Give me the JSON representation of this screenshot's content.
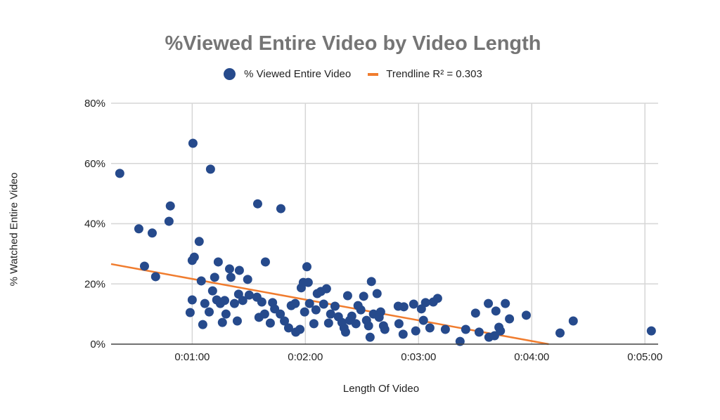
{
  "chart_data": {
    "type": "scatter",
    "title": "%Viewed Entire Video by Video Length",
    "xlabel": "Length Of Video",
    "ylabel": "% Watched Entire Video",
    "legend": [
      {
        "label": "% Viewed Entire Video",
        "type": "marker",
        "color": "#264a8c"
      },
      {
        "label": "Trendline R² = 0.303",
        "type": "line",
        "color": "#f07c2e"
      }
    ],
    "legend_position": "top",
    "grid": true,
    "x_unit": "seconds",
    "xlim": [
      17,
      307
    ],
    "ylim": [
      0,
      80
    ],
    "x_ticks": [
      {
        "value": 60,
        "label": "0:01:00"
      },
      {
        "value": 120,
        "label": "0:02:00"
      },
      {
        "value": 180,
        "label": "0:03:00"
      },
      {
        "value": 240,
        "label": "0:04:00"
      },
      {
        "value": 300,
        "label": "0:05:00"
      }
    ],
    "y_ticks": [
      {
        "value": 0,
        "label": "0%"
      },
      {
        "value": 20,
        "label": "20%"
      },
      {
        "value": 40,
        "label": "40%"
      },
      {
        "value": 60,
        "label": "60%"
      },
      {
        "value": 80,
        "label": "80%"
      }
    ],
    "trendline": {
      "r_squared": 0.303,
      "start": [
        17,
        26.6
      ],
      "end": [
        249,
        0
      ]
    },
    "series": [
      {
        "name": "% Viewed Entire Video",
        "color": "#264a8c",
        "points": [
          [
            21.6,
            56.7
          ],
          [
            31.7,
            38.3
          ],
          [
            34.7,
            25.9
          ],
          [
            38.8,
            36.9
          ],
          [
            40.6,
            22.4
          ],
          [
            47.7,
            40.8
          ],
          [
            48.4,
            45.9
          ],
          [
            58.9,
            10.5
          ],
          [
            60,
            14.7
          ],
          [
            60.4,
            66.7
          ],
          [
            60,
            27.8
          ],
          [
            61.1,
            28.9
          ],
          [
            63.7,
            34.1
          ],
          [
            64.8,
            21
          ],
          [
            65.6,
            6.5
          ],
          [
            66.7,
            13.5
          ],
          [
            69,
            10.7
          ],
          [
            69.7,
            58.1
          ],
          [
            70.8,
            17.7
          ],
          [
            71.9,
            22.2
          ],
          [
            73.8,
            27.3
          ],
          [
            73,
            14.7
          ],
          [
            74.9,
            13.5
          ],
          [
            76,
            7.2
          ],
          [
            77.2,
            14.5
          ],
          [
            77.9,
            10
          ],
          [
            79.8,
            25
          ],
          [
            80.5,
            22.2
          ],
          [
            82.4,
            13.5
          ],
          [
            83.9,
            7.7
          ],
          [
            85,
            24.5
          ],
          [
            84.6,
            16.6
          ],
          [
            86.8,
            14.5
          ],
          [
            89.4,
            21.5
          ],
          [
            90.2,
            16.3
          ],
          [
            94.7,
            46.6
          ],
          [
            94.3,
            15.6
          ],
          [
            95.4,
            8.9
          ],
          [
            96.9,
            14
          ],
          [
            98.8,
            27.3
          ],
          [
            98.4,
            10
          ],
          [
            101.4,
            7
          ],
          [
            102.6,
            13.8
          ],
          [
            103.7,
            11.7
          ],
          [
            107,
            45
          ],
          [
            106.7,
            10
          ],
          [
            108.9,
            7.7
          ],
          [
            111.1,
            5.4
          ],
          [
            112.5,
            12.8
          ],
          [
            114.6,
            13.5
          ],
          [
            114.9,
            4
          ],
          [
            117.1,
            4.9
          ],
          [
            117.8,
            18.7
          ],
          [
            118.9,
            20.5
          ],
          [
            120.8,
            25.7
          ],
          [
            119.6,
            10.7
          ],
          [
            121.5,
            20.5
          ],
          [
            122.2,
            13.5
          ],
          [
            124.5,
            6.8
          ],
          [
            125.6,
            11.4
          ],
          [
            126.3,
            16.8
          ],
          [
            128.2,
            17.5
          ],
          [
            129.7,
            13.3
          ],
          [
            131.2,
            18.4
          ],
          [
            132.3,
            7
          ],
          [
            133.4,
            10
          ],
          [
            135.7,
            12.6
          ],
          [
            137.5,
            9.1
          ],
          [
            139.4,
            7.2
          ],
          [
            140.5,
            5.4
          ],
          [
            141.3,
            4
          ],
          [
            142.4,
            16.1
          ],
          [
            143.5,
            7.9
          ],
          [
            144.6,
            9.3
          ],
          [
            146.8,
            6.8
          ],
          [
            147.9,
            12.8
          ],
          [
            149.4,
            11.4
          ],
          [
            150.9,
            15.9
          ],
          [
            152.4,
            7.9
          ],
          [
            153.5,
            6.1
          ],
          [
            154.3,
            2.3
          ],
          [
            155,
            20.8
          ],
          [
            156.1,
            10
          ],
          [
            158,
            16.8
          ],
          [
            159.1,
            8.9
          ],
          [
            159.9,
            10.7
          ],
          [
            161.4,
            6.1
          ],
          [
            162.1,
            4.9
          ],
          [
            169.2,
            12.6
          ],
          [
            169.6,
            6.8
          ],
          [
            172.2,
            12.4
          ],
          [
            171.8,
            3.3
          ],
          [
            177.4,
            13.3
          ],
          [
            178.5,
            4.4
          ],
          [
            181.5,
            11.7
          ],
          [
            182.6,
            7.9
          ],
          [
            183.7,
            13.8
          ],
          [
            186,
            5.4
          ],
          [
            187.8,
            14
          ],
          [
            190.1,
            15.2
          ],
          [
            194.2,
            4.9
          ],
          [
            202,
            0.9
          ],
          [
            205,
            4.9
          ],
          [
            210.2,
            10.3
          ],
          [
            212.1,
            4
          ],
          [
            217,
            13.5
          ],
          [
            217.3,
            2.3
          ],
          [
            220.3,
            2.8
          ],
          [
            221,
            11
          ],
          [
            222.6,
            5.6
          ],
          [
            223.4,
            4.4
          ],
          [
            226,
            13.5
          ],
          [
            228.2,
            8.4
          ],
          [
            237.1,
            9.6
          ],
          [
            255,
            3.7
          ],
          [
            262,
            7.7
          ],
          [
            303.4,
            4.4
          ]
        ]
      }
    ]
  },
  "chart": {
    "title": "%Viewed Entire Video by Video Length",
    "legend_series_label": "% Viewed Entire Video",
    "legend_trend_label": "Trendline R² = 0.303",
    "xlabel": "Length Of Video",
    "ylabel": "% Watched Entire Video"
  }
}
